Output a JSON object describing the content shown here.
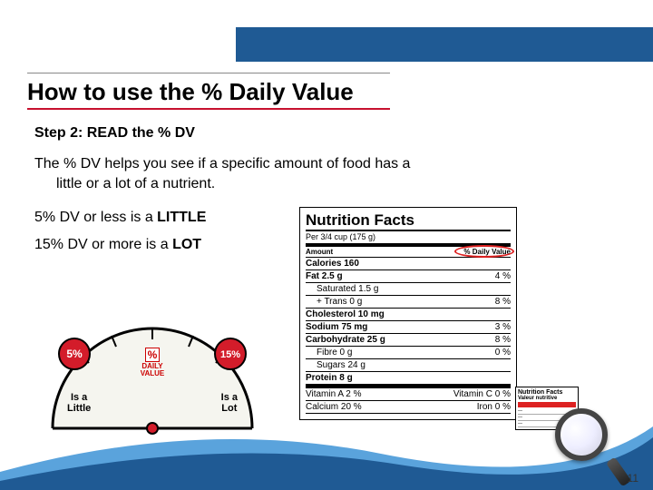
{
  "colors": {
    "header_band": "#1f5a94",
    "accent_red": "#c7112f",
    "gauge_red": "#d31c2a",
    "gauge_outline": "#000000",
    "wave_light": "#5aa3dc",
    "wave_dark": "#1f5a94"
  },
  "title": "How to use the % Daily Value",
  "step": "Step 2: READ the % DV",
  "paragraph_line1": "The % DV helps you see if a specific amount of food has a",
  "paragraph_line2": "little or a lot of a nutrient.",
  "rule_little_prefix": "5% DV or less is a ",
  "rule_little_key": "LITTLE",
  "rule_lot_prefix": "15% DV or more is a ",
  "rule_lot_key": "LOT",
  "gauge": {
    "low_pct": "5%",
    "high_pct": "15%",
    "center_pct": "%",
    "center_line1": "DAILY",
    "center_line2": "VALUE",
    "left_line1": "Is a",
    "left_line2": "Little",
    "right_line1": "Is a",
    "right_line2": "Lot"
  },
  "nutrition": {
    "heading": "Nutrition Facts",
    "serving": "Per 3/4 cup (175 g)",
    "amount_hdr": "Amount",
    "dv_hdr": "% Daily Value",
    "calories": "Calories 160",
    "rows": [
      {
        "label": "Fat 2.5 g",
        "bold": true,
        "dv": "4 %",
        "sub": false
      },
      {
        "label": "Saturated 1.5 g",
        "bold": false,
        "dv": "",
        "sub": true
      },
      {
        "label": "+ Trans 0 g",
        "bold": false,
        "dv": "8 %",
        "sub": true
      },
      {
        "label": "Cholesterol 10 mg",
        "bold": true,
        "dv": "",
        "sub": false
      },
      {
        "label": "Sodium 75 mg",
        "bold": true,
        "dv": "3 %",
        "sub": false
      },
      {
        "label": "Carbohydrate 25 g",
        "bold": true,
        "dv": "8 %",
        "sub": false
      },
      {
        "label": "Fibre 0 g",
        "bold": false,
        "dv": "0 %",
        "sub": true
      },
      {
        "label": "Sugars 24 g",
        "bold": false,
        "dv": "",
        "sub": true
      },
      {
        "label": "Protein 8 g",
        "bold": true,
        "dv": "",
        "sub": false
      }
    ],
    "vitamins": [
      {
        "l": "Vitamin A 2 %",
        "r": "Vitamin C 0 %"
      },
      {
        "l": "Calcium 20 %",
        "r": "Iron 0 %"
      }
    ]
  },
  "footer_label": {
    "en": "Nutrition Facts",
    "fr": "Valeur nutritive"
  },
  "page_number": "11"
}
